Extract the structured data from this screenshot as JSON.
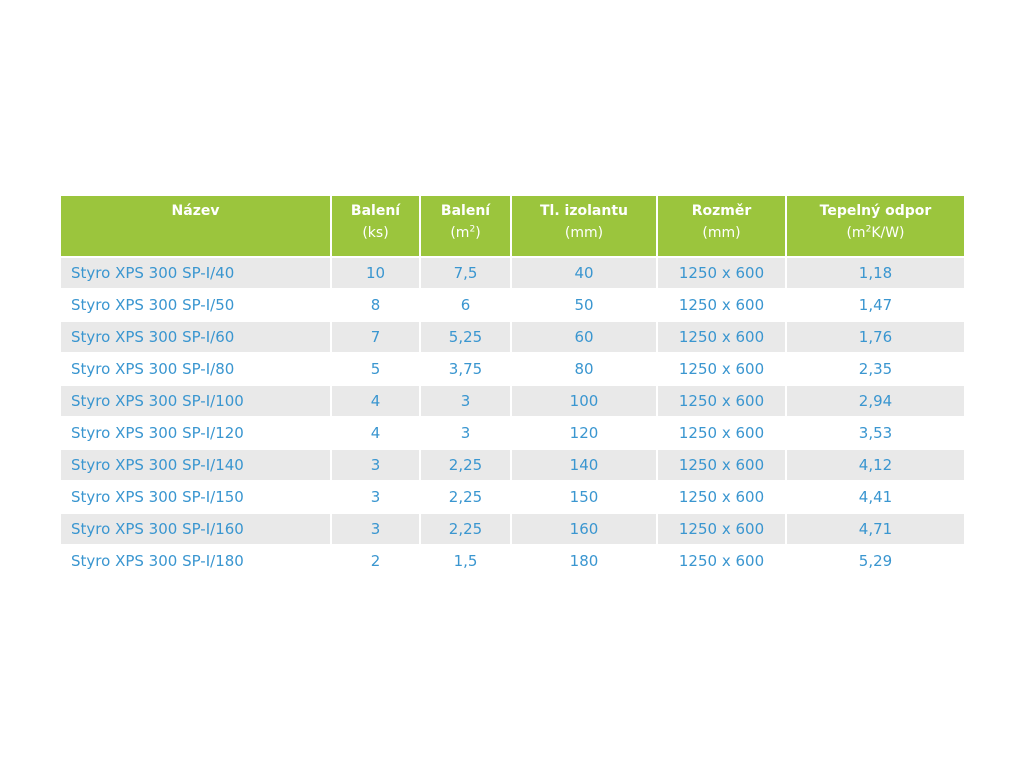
{
  "colors": {
    "header_bg": "#9bc53d",
    "header_text": "#ffffff",
    "cell_text": "#3a96d0",
    "stripe_bg": "#e9e9e9"
  },
  "table": {
    "headers": [
      {
        "line1": "Název",
        "line2": ""
      },
      {
        "line1": "Balení",
        "line2": "(ks)"
      },
      {
        "line1": "Balení",
        "line2_pre": "(m",
        "line2_sup": "2",
        "line2_post": ")"
      },
      {
        "line1": "Tl. izolantu",
        "line2": "(mm)"
      },
      {
        "line1": "Rozměr",
        "line2": "(mm)"
      },
      {
        "line1": "Tepelný odpor",
        "line2_pre": "(m",
        "line2_sup": "2",
        "line2_post": "K/W)"
      }
    ],
    "rows": [
      [
        "Styro XPS 300 SP-I/40",
        "10",
        "7,5",
        "40",
        "1250 x 600",
        "1,18"
      ],
      [
        "Styro XPS 300 SP-I/50",
        "8",
        "6",
        "50",
        "1250 x 600",
        "1,47"
      ],
      [
        "Styro XPS 300 SP-I/60",
        "7",
        "5,25",
        "60",
        "1250 x 600",
        "1,76"
      ],
      [
        "Styro XPS 300 SP-I/80",
        "5",
        "3,75",
        "80",
        "1250 x 600",
        "2,35"
      ],
      [
        "Styro XPS 300 SP-I/100",
        "4",
        "3",
        "100",
        "1250 x 600",
        "2,94"
      ],
      [
        "Styro XPS 300 SP-I/120",
        "4",
        "3",
        "120",
        "1250 x 600",
        "3,53"
      ],
      [
        "Styro XPS 300 SP-I/140",
        "3",
        "2,25",
        "140",
        "1250 x 600",
        "4,12"
      ],
      [
        "Styro XPS 300 SP-I/150",
        "3",
        "2,25",
        "150",
        "1250 x 600",
        "4,41"
      ],
      [
        "Styro XPS 300 SP-I/160",
        "3",
        "2,25",
        "160",
        "1250 x 600",
        "4,71"
      ],
      [
        "Styro XPS 300 SP-I/180",
        "2",
        "1,5",
        "180",
        "1250 x 600",
        "5,29"
      ]
    ]
  }
}
